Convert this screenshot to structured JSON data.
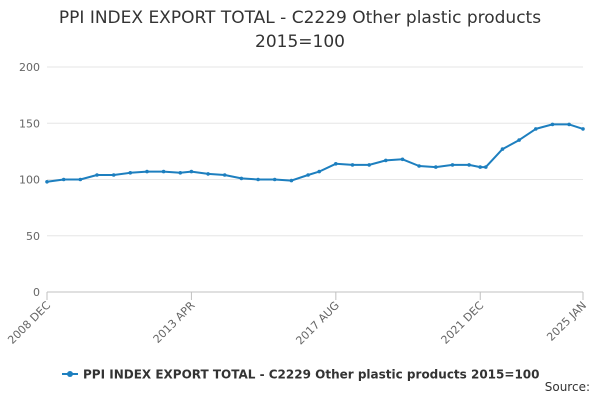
{
  "chart_data": {
    "type": "line",
    "title_line1": "PPI INDEX EXPORT TOTAL - C2229 Other plastic products",
    "title_line2": "2015=100",
    "xlabel": "",
    "ylabel": "",
    "ylim": [
      0,
      200
    ],
    "y_ticks": [
      0,
      50,
      100,
      150,
      200
    ],
    "x_tick_labels": [
      "2008 DEC",
      "2013 APR",
      "2017 AUG",
      "2021 DEC",
      "2025 JAN"
    ],
    "grid": "horizontal",
    "legend_position": "bottom",
    "source_label": "Source:",
    "colors": {
      "series": "#1d7fbf",
      "grid": "#e6e6e6",
      "axis": "#c0c0c0",
      "text": "#666666"
    },
    "series": [
      {
        "name": "PPI INDEX EXPORT TOTAL - C2229 Other plastic products 2015=100",
        "x": [
          "2008 DEC",
          "2009 JUN",
          "2009 DEC",
          "2010 JUN",
          "2010 DEC",
          "2011 JUN",
          "2011 DEC",
          "2012 JUN",
          "2012 DEC",
          "2013 APR",
          "2013 OCT",
          "2014 APR",
          "2014 OCT",
          "2015 APR",
          "2015 OCT",
          "2016 APR",
          "2016 OCT",
          "2017 FEB",
          "2017 AUG",
          "2018 FEB",
          "2018 AUG",
          "2019 FEB",
          "2019 AUG",
          "2020 FEB",
          "2020 AUG",
          "2021 FEB",
          "2021 AUG",
          "2021 DEC",
          "2022 FEB",
          "2022 AUG",
          "2023 FEB",
          "2023 AUG",
          "2024 FEB",
          "2024 AUG",
          "2025 JAN"
        ],
        "values": [
          98,
          100,
          100,
          104,
          104,
          106,
          107,
          107,
          106,
          107,
          105,
          104,
          101,
          100,
          100,
          99,
          104,
          107,
          114,
          113,
          113,
          117,
          118,
          112,
          111,
          113,
          113,
          111,
          111,
          127,
          135,
          145,
          149,
          149,
          145
        ]
      }
    ]
  }
}
